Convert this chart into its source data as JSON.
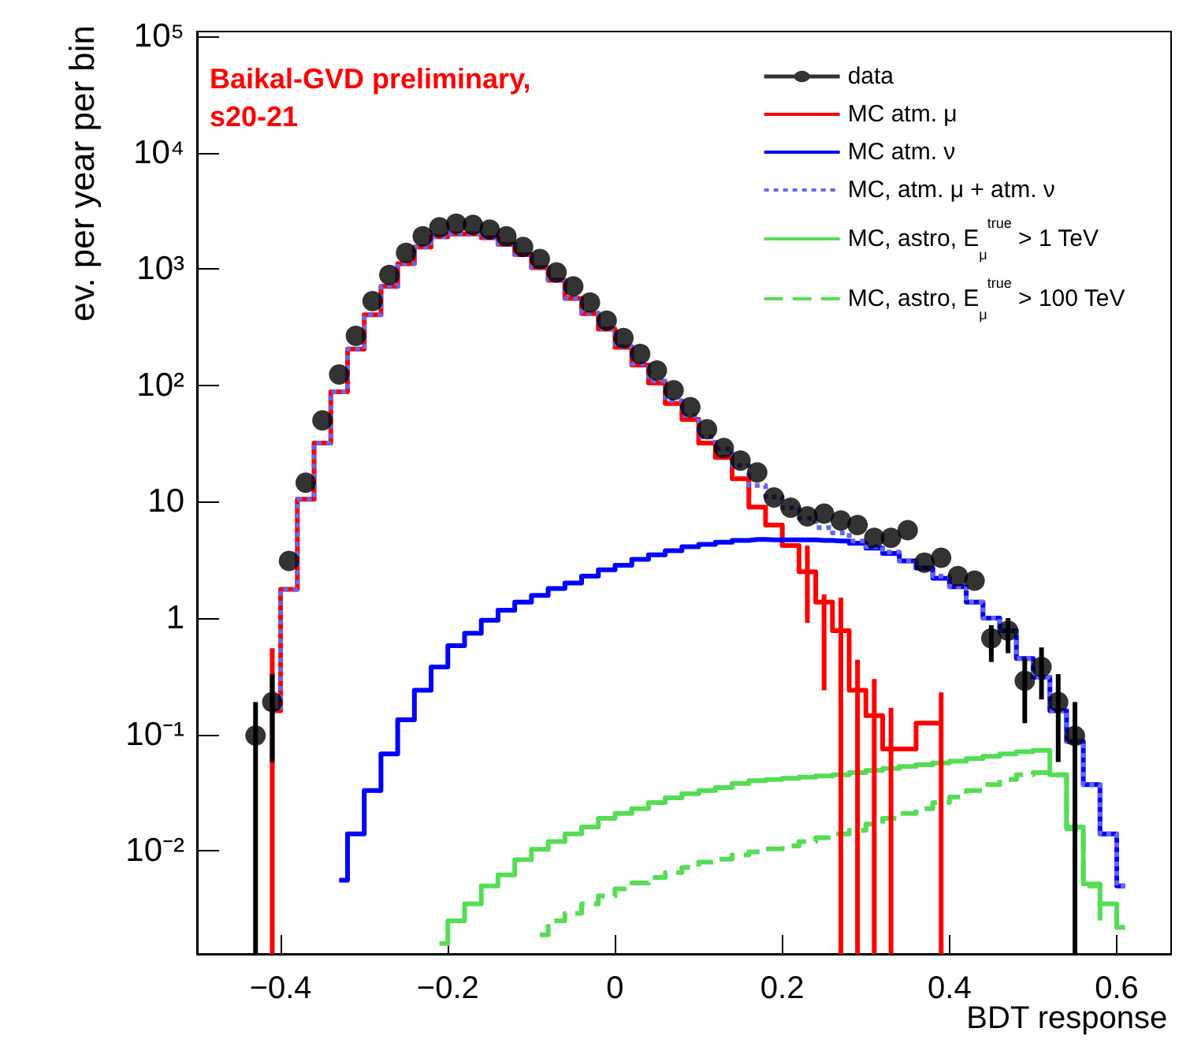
{
  "chart_data": {
    "type": "step",
    "xlabel": "BDT response",
    "ylabel": "ev. per year per bin",
    "annotations": [
      "Baikal-GVD preliminary, s20-21"
    ],
    "legend": "top right",
    "grid": false,
    "log": "y",
    "xlim": [
      -0.5,
      0.665
    ],
    "xticks": [
      {
        "value": -0.4,
        "label": "−0.4"
      },
      {
        "value": -0.2,
        "label": "−0.2"
      },
      0,
      0.2,
      0.4,
      0.6
    ],
    "ylim": [
      0.0013,
      110000
    ],
    "yticks": [
      {
        "value": 0.01,
        "label": "10⁻²"
      },
      {
        "value": 0.1,
        "label": "10⁻¹"
      },
      1,
      10,
      {
        "value": 100,
        "label": "10²"
      },
      {
        "value": 1000,
        "label": "10³"
      },
      {
        "value": 10000,
        "label": "10⁴"
      },
      {
        "value": 100000,
        "label": "10⁵"
      }
    ],
    "series": [
      {
        "name": "data",
        "type": "scatter",
        "color": "#000000",
        "marker": "circle",
        "x": [
          -0.43,
          -0.41,
          -0.39,
          -0.37,
          -0.35,
          -0.33,
          -0.31,
          -0.29,
          -0.27,
          -0.25,
          -0.23,
          -0.21,
          -0.19,
          -0.17,
          -0.15,
          -0.13,
          -0.11,
          -0.09,
          -0.07,
          -0.05,
          -0.03,
          -0.01,
          0.01,
          0.03,
          0.05,
          0.07,
          0.09,
          0.11,
          0.13,
          0.15,
          0.17,
          0.19,
          0.21,
          0.23,
          0.25,
          0.27,
          0.29,
          0.31,
          0.33,
          0.35,
          0.37,
          0.39,
          0.41,
          0.43,
          0.45,
          0.47,
          0.49,
          0.51,
          0.53,
          0.55
        ],
        "values": [
          0.098,
          0.19,
          3.1,
          14.6,
          50,
          124,
          267,
          530,
          890,
          1380,
          1910,
          2290,
          2450,
          2400,
          2180,
          1910,
          1550,
          1220,
          935,
          710,
          515,
          360,
          255,
          186,
          134,
          91,
          65,
          42,
          29,
          22.6,
          17.9,
          10.9,
          8.9,
          7.5,
          7.9,
          6.9,
          6.3,
          4.9,
          4.9,
          5.7,
          3.0,
          3.3,
          2.3,
          2.1,
          0.67,
          0.78,
          0.29,
          0.38,
          0.19,
          0.097
        ],
        "errors": [
          [
            0.0013,
            0.19
          ],
          [
            0.058,
            0.33
          ],
          null,
          null,
          null,
          null,
          null,
          null,
          null,
          null,
          null,
          null,
          null,
          null,
          null,
          null,
          null,
          null,
          null,
          null,
          null,
          null,
          null,
          null,
          null,
          null,
          null,
          null,
          null,
          null,
          null,
          null,
          null,
          null,
          null,
          null,
          null,
          null,
          null,
          null,
          null,
          null,
          null,
          null,
          [
            0.42,
            0.87
          ],
          [
            0.5,
            1.0
          ],
          [
            0.125,
            0.45
          ],
          [
            0.2,
            0.56
          ],
          [
            0.058,
            0.33
          ],
          [
            0.0013,
            0.19
          ]
        ]
      },
      {
        "name": "MC atm. μ",
        "color": "#ff0000",
        "line_style": "solid",
        "x": [
          -0.41,
          -0.39,
          -0.37,
          -0.35,
          -0.33,
          -0.31,
          -0.29,
          -0.27,
          -0.25,
          -0.23,
          -0.21,
          -0.19,
          -0.17,
          -0.15,
          -0.13,
          -0.11,
          -0.09,
          -0.07,
          -0.05,
          -0.03,
          -0.01,
          0.01,
          0.03,
          0.05,
          0.07,
          0.09,
          0.11,
          0.13,
          0.15,
          0.17,
          0.19,
          0.21,
          0.23,
          0.25,
          0.27,
          0.29,
          0.31,
          0.33,
          0.39
        ],
        "values": [
          0.16,
          1.77,
          10.5,
          32,
          88,
          205,
          405,
          710,
          1110,
          1550,
          1900,
          2000,
          2000,
          1860,
          1630,
          1330,
          1030,
          800,
          560,
          415,
          305,
          213,
          150,
          105,
          70,
          51,
          32,
          24,
          15.8,
          9,
          6.3,
          4.2,
          2.5,
          1.37,
          0.78,
          0.24,
          0.145,
          0.075,
          0.125
        ],
        "errors": [
          [
            0.0013,
            0.55
          ],
          null,
          null,
          null,
          null,
          null,
          null,
          null,
          null,
          null,
          null,
          null,
          null,
          null,
          null,
          null,
          null,
          null,
          null,
          null,
          null,
          null,
          null,
          null,
          null,
          null,
          null,
          null,
          null,
          null,
          null,
          null,
          [
            0.91,
            4.2
          ],
          [
            0.24,
            1.6
          ],
          [
            0.0013,
            1.5
          ],
          [
            0.0013,
            0.44
          ],
          [
            0.0013,
            0.3
          ],
          [
            0.0013,
            0.17
          ],
          [
            0.0013,
            0.23
          ]
        ]
      },
      {
        "name": "MC atm. ν",
        "color": "#0000ff",
        "line_style": "solid",
        "x": [
          -0.33,
          -0.31,
          -0.29,
          -0.27,
          -0.25,
          -0.23,
          -0.21,
          -0.19,
          -0.17,
          -0.15,
          -0.13,
          -0.11,
          -0.09,
          -0.07,
          -0.05,
          -0.03,
          -0.01,
          0.01,
          0.03,
          0.05,
          0.07,
          0.09,
          0.11,
          0.13,
          0.15,
          0.17,
          0.19,
          0.21,
          0.23,
          0.25,
          0.27,
          0.29,
          0.31,
          0.33,
          0.35,
          0.37,
          0.39,
          0.41,
          0.43,
          0.45,
          0.47,
          0.49,
          0.51,
          0.53,
          0.55,
          0.57,
          0.59,
          0.61
        ],
        "values": [
          0.0056,
          0.014,
          0.033,
          0.068,
          0.134,
          0.24,
          0.38,
          0.58,
          0.74,
          0.96,
          1.17,
          1.37,
          1.57,
          1.8,
          2.0,
          2.3,
          2.6,
          2.85,
          3.2,
          3.5,
          3.8,
          4.1,
          4.3,
          4.5,
          4.65,
          4.75,
          4.7,
          4.7,
          4.7,
          4.65,
          4.6,
          4.4,
          4.0,
          3.6,
          3.1,
          2.7,
          2.2,
          1.86,
          1.37,
          1.0,
          0.78,
          0.45,
          0.31,
          0.16,
          0.087,
          0.037,
          0.014,
          0.005
        ]
      },
      {
        "name": "MC, atm. μ + atm. ν",
        "color": "#6666ee",
        "line_style": "dotted",
        "x": [
          -0.41,
          -0.39,
          -0.37,
          -0.35,
          -0.33,
          -0.31,
          -0.29,
          -0.27,
          -0.25,
          -0.23,
          -0.21,
          -0.19,
          -0.17,
          -0.15,
          -0.13,
          -0.11,
          -0.09,
          -0.07,
          -0.05,
          -0.03,
          -0.01,
          0.01,
          0.03,
          0.05,
          0.07,
          0.09,
          0.11,
          0.13,
          0.15,
          0.17,
          0.19,
          0.21,
          0.23,
          0.25,
          0.27,
          0.29,
          0.31,
          0.33,
          0.35,
          0.37,
          0.39,
          0.41,
          0.43,
          0.45,
          0.47,
          0.49,
          0.51,
          0.53,
          0.55,
          0.57,
          0.59,
          0.61
        ],
        "values": [
          0.16,
          1.77,
          10.5,
          32,
          88,
          205,
          405,
          710,
          1110,
          1550,
          1900,
          2000,
          2000,
          1860,
          1630,
          1330,
          1030,
          800,
          560,
          417,
          308,
          216,
          153,
          109,
          74,
          55,
          36,
          28.5,
          20.5,
          13.8,
          11,
          8.9,
          7.2,
          6.0,
          5.4,
          4.6,
          4.1,
          3.7,
          3.1,
          2.7,
          2.3,
          1.86,
          1.37,
          1.0,
          0.78,
          0.45,
          0.31,
          0.16,
          0.087,
          0.037,
          0.014,
          0.005
        ]
      },
      {
        "name": "MC, astro, E$_{μ}$$^{true}$ > 1 TeV",
        "color": "#55dd55",
        "line_style": "solid",
        "x": [
          -0.21,
          -0.19,
          -0.17,
          -0.15,
          -0.13,
          -0.11,
          -0.09,
          -0.07,
          -0.05,
          -0.03,
          -0.01,
          0.01,
          0.03,
          0.05,
          0.07,
          0.09,
          0.11,
          0.13,
          0.15,
          0.17,
          0.19,
          0.21,
          0.23,
          0.25,
          0.27,
          0.29,
          0.31,
          0.33,
          0.35,
          0.37,
          0.39,
          0.41,
          0.43,
          0.45,
          0.47,
          0.49,
          0.51,
          0.53,
          0.55,
          0.57,
          0.59,
          0.61
        ],
        "values": [
          0.0016,
          0.0025,
          0.0035,
          0.005,
          0.0062,
          0.0084,
          0.0103,
          0.012,
          0.014,
          0.016,
          0.019,
          0.021,
          0.023,
          0.026,
          0.0285,
          0.031,
          0.033,
          0.035,
          0.038,
          0.04,
          0.041,
          0.042,
          0.043,
          0.044,
          0.045,
          0.047,
          0.049,
          0.051,
          0.053,
          0.055,
          0.057,
          0.059,
          0.062,
          0.065,
          0.068,
          0.071,
          0.073,
          0.045,
          0.016,
          0.0052,
          0.0035,
          0.0022
        ]
      },
      {
        "name": "MC, astro, E$_{μ}$$^{true}$ > 100 TeV",
        "color": "#55dd55",
        "line_style": "dashed",
        "x": [
          -0.09,
          -0.07,
          -0.05,
          -0.03,
          -0.01,
          0.01,
          0.03,
          0.05,
          0.07,
          0.09,
          0.11,
          0.13,
          0.15,
          0.17,
          0.19,
          0.21,
          0.23,
          0.25,
          0.27,
          0.29,
          0.31,
          0.33,
          0.35,
          0.37,
          0.39,
          0.41,
          0.43,
          0.45,
          0.47,
          0.49,
          0.51,
          0.53,
          0.55,
          0.57,
          0.59
        ],
        "values": [
          0.0019,
          0.0025,
          0.0029,
          0.0035,
          0.0041,
          0.0047,
          0.0053,
          0.0059,
          0.0065,
          0.0072,
          0.008,
          0.0085,
          0.0092,
          0.0098,
          0.0104,
          0.011,
          0.012,
          0.013,
          0.014,
          0.015,
          0.017,
          0.019,
          0.021,
          0.023,
          0.026,
          0.029,
          0.033,
          0.037,
          0.041,
          0.045,
          0.047,
          0.045,
          0.0155,
          0.005,
          0.0025
        ]
      }
    ]
  }
}
